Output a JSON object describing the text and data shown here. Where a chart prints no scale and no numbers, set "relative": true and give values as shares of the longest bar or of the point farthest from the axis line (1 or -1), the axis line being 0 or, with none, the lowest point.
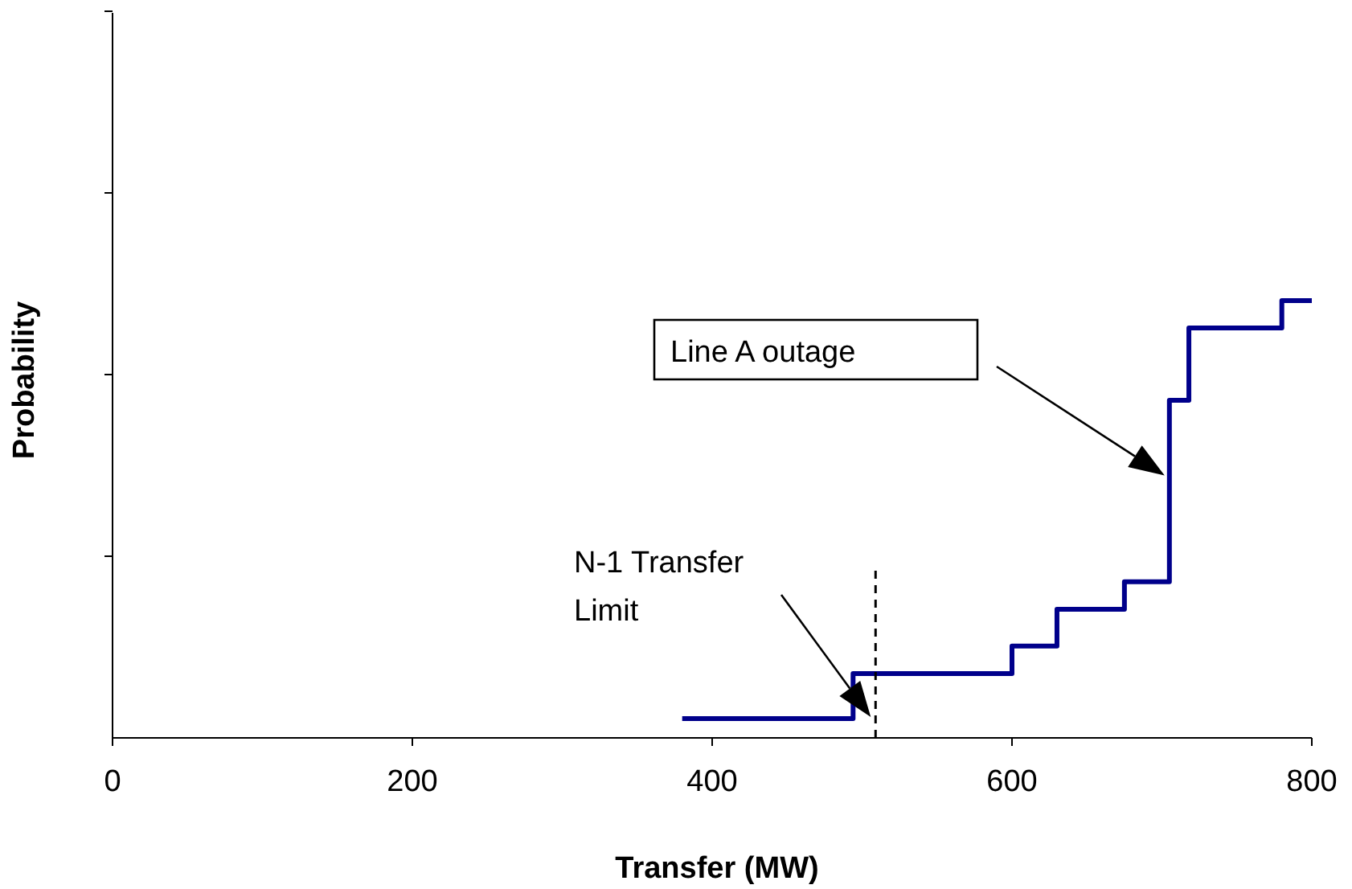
{
  "chart_data": {
    "type": "step",
    "xlabel": "Transfer (MW)",
    "ylabel": "Probability",
    "relative": true,
    "xlim": [
      0,
      800
    ],
    "xticks": [
      0,
      200,
      400,
      600,
      800
    ],
    "x": [
      380,
      494,
      600,
      630,
      675,
      705,
      718,
      780,
      800
    ],
    "series": [
      {
        "color": "#00008b",
        "values": [
          0.044,
          0.147,
          0.21,
          0.294,
          0.357,
          0.772,
          0.9375,
          1,
          1
        ]
      }
    ],
    "ref_lines": [
      {
        "axis": "x",
        "value": 509,
        "label": "N-1 Transfer Limit",
        "line_style": "dashed",
        "color": "#000000"
      }
    ],
    "annotations": [
      "Line A outage"
    ],
    "grid": false
  }
}
